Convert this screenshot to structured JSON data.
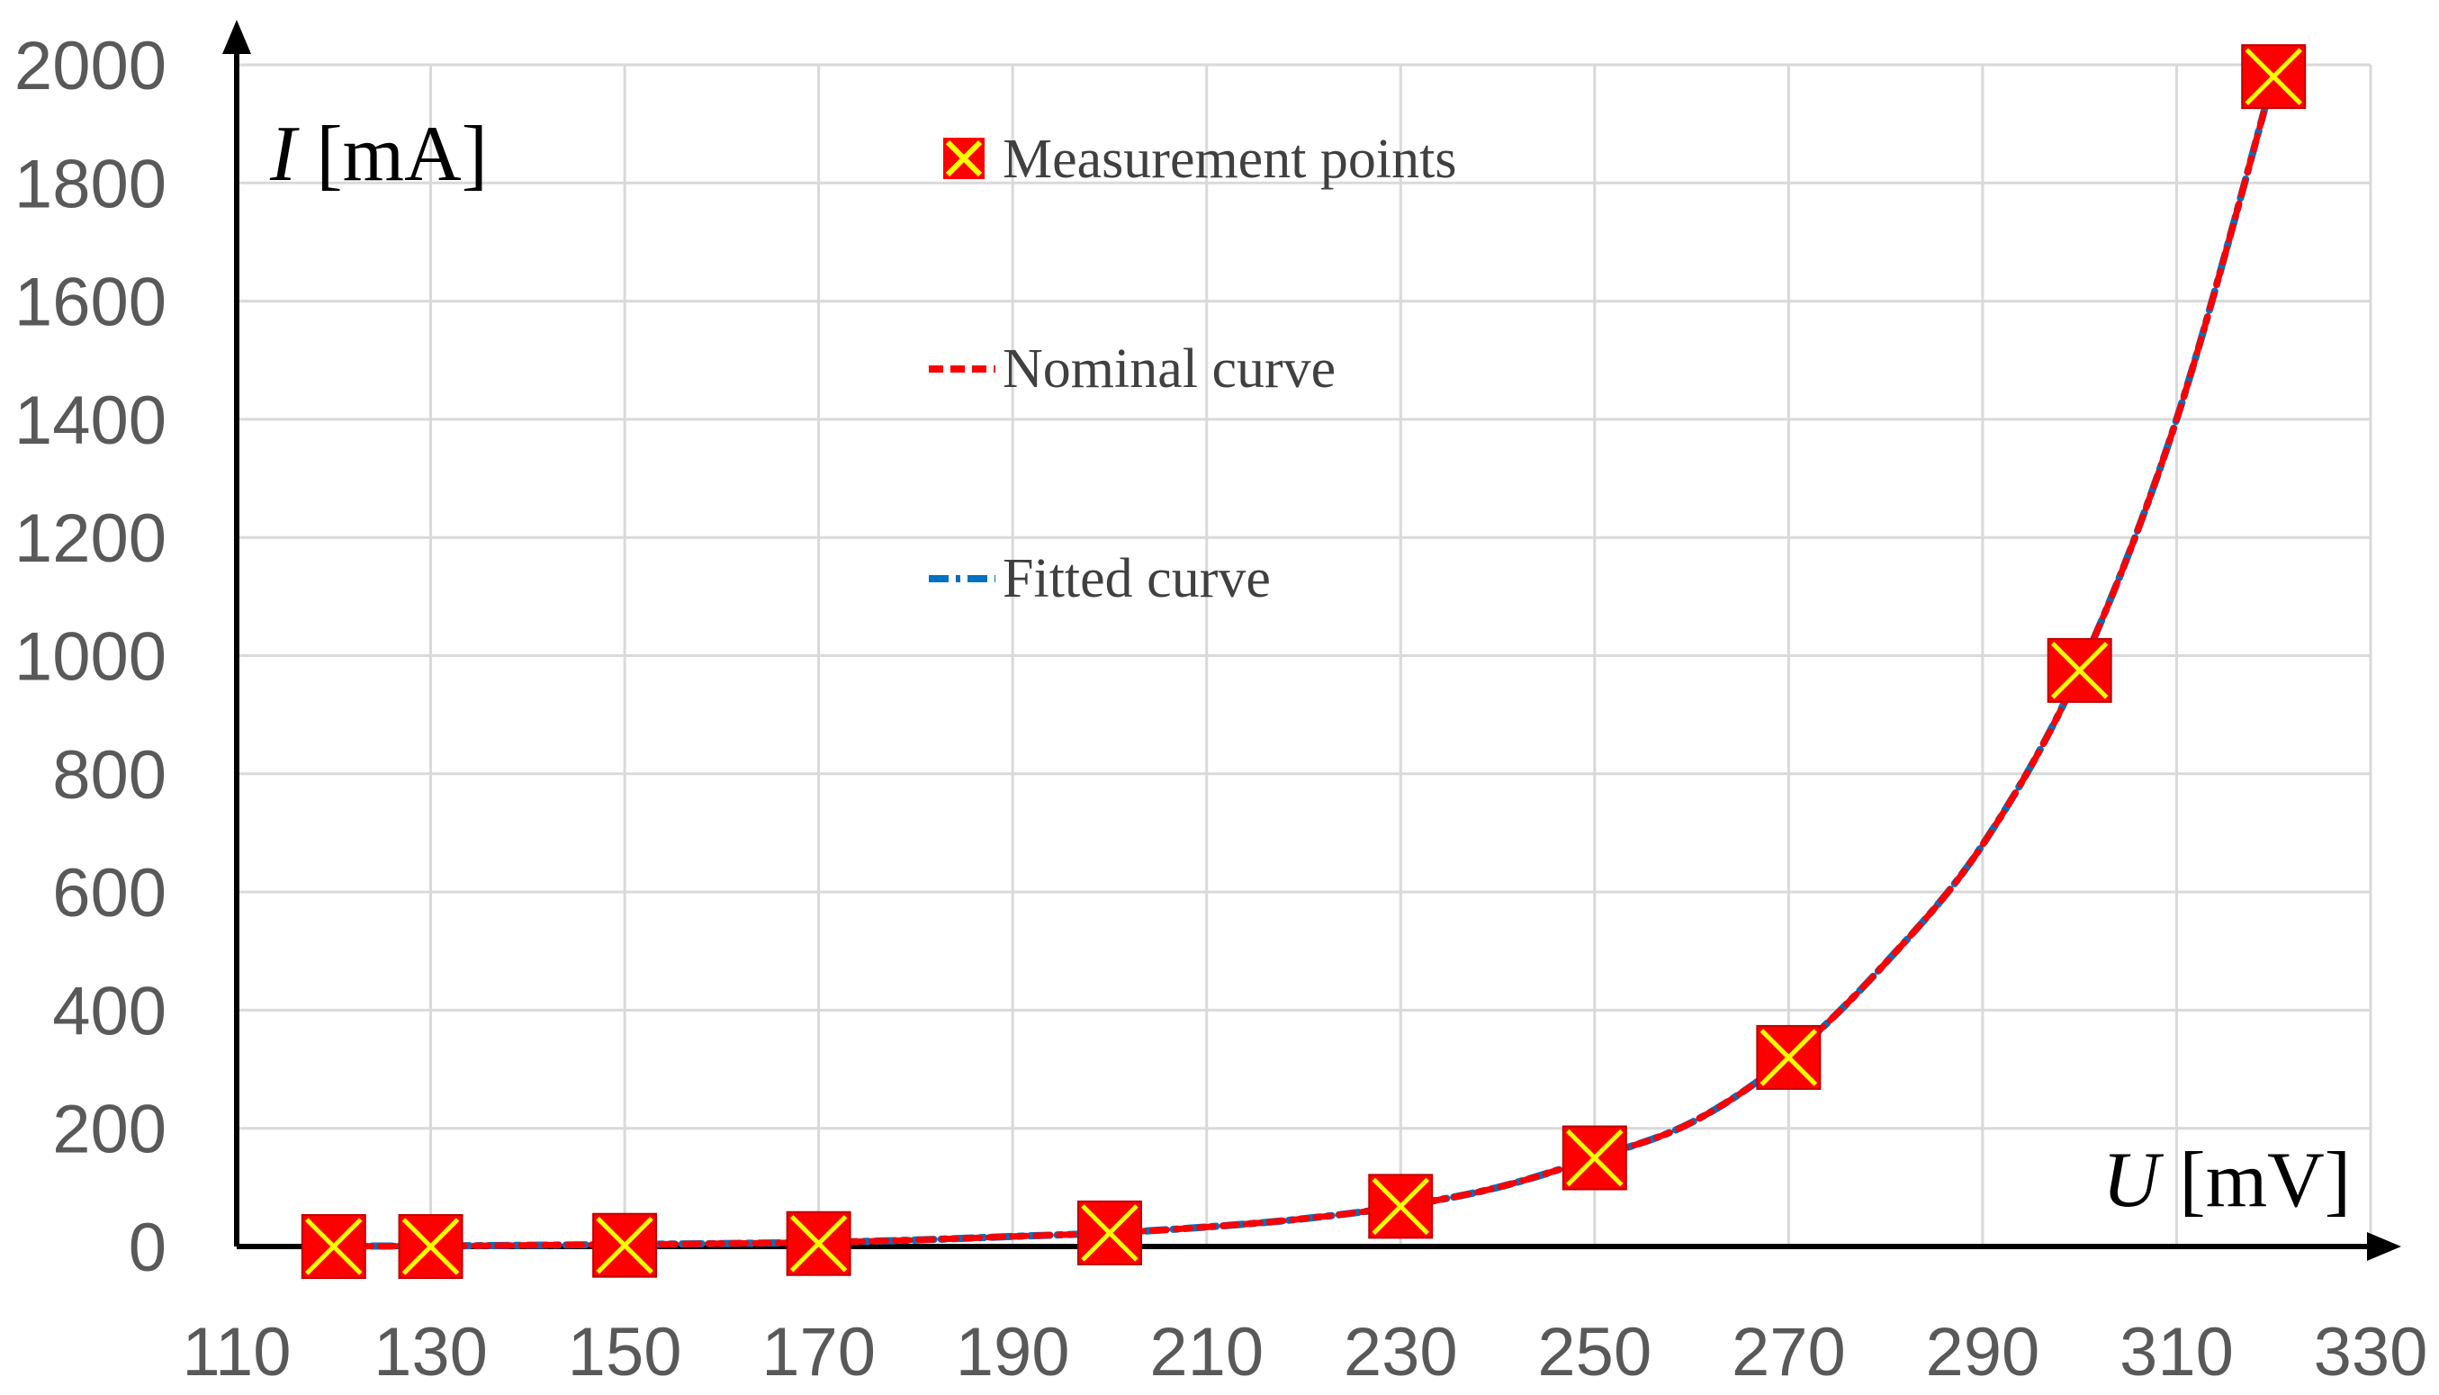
{
  "chart_data": {
    "type": "line",
    "x_axis": {
      "label_var": "U",
      "label_unit": " [mV]",
      "range": [
        110,
        330
      ],
      "ticks": [
        110,
        130,
        150,
        170,
        190,
        210,
        230,
        250,
        270,
        290,
        310,
        330
      ]
    },
    "y_axis": {
      "label_var": "I",
      "label_unit": " [mA]",
      "range": [
        0,
        2000
      ],
      "ticks": [
        0,
        200,
        400,
        600,
        800,
        1000,
        1200,
        1400,
        1600,
        1800,
        2000
      ]
    },
    "grid": true,
    "legend_position": "top-center",
    "series": [
      {
        "name": "Measurement points",
        "kind": "markers",
        "marker_fill": "#ff0000",
        "marker_cross": "#ffff00",
        "x": [
          120,
          130,
          150,
          170,
          200,
          230,
          250,
          270,
          300,
          320
        ],
        "y": [
          0,
          0,
          2,
          5,
          23,
          68,
          150,
          320,
          975,
          1980
        ]
      },
      {
        "name": "Nominal curve",
        "kind": "line",
        "color": "#ff0000",
        "dash": "short-dash",
        "x": [
          120,
          130,
          140,
          150,
          160,
          170,
          180,
          190,
          200,
          210,
          220,
          230,
          240,
          250,
          260,
          270,
          280,
          290,
          300,
          310,
          320
        ],
        "y": [
          0.5,
          1,
          2,
          3.5,
          5,
          7,
          11,
          17,
          23,
          33,
          47,
          68,
          100,
          150,
          210,
          320,
          480,
          680,
          975,
          1400,
          1980
        ]
      },
      {
        "name": "Fitted curve",
        "kind": "line",
        "color": "#0070c0",
        "dash": "dash-dot",
        "x": [
          120,
          130,
          140,
          150,
          160,
          170,
          180,
          190,
          200,
          210,
          220,
          230,
          240,
          250,
          260,
          270,
          280,
          290,
          300,
          310,
          320
        ],
        "y": [
          0.5,
          1,
          2,
          3.5,
          5,
          7,
          11,
          17,
          23,
          33,
          47,
          68,
          100,
          150,
          210,
          320,
          480,
          680,
          975,
          1400,
          1980
        ]
      }
    ]
  }
}
